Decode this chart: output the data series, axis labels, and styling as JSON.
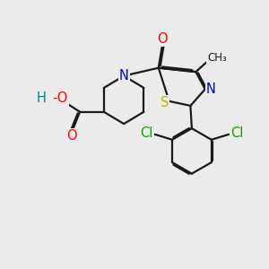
{
  "bg_color": "#ebebeb",
  "bond_color": "#1a1a1a",
  "bond_width": 1.6,
  "dbo": 0.055,
  "atom_colors": {
    "O": "#ff0000",
    "N": "#0000cc",
    "S": "#bbbb00",
    "Cl": "#00aa00",
    "H": "#008888"
  },
  "fs": 10.5
}
